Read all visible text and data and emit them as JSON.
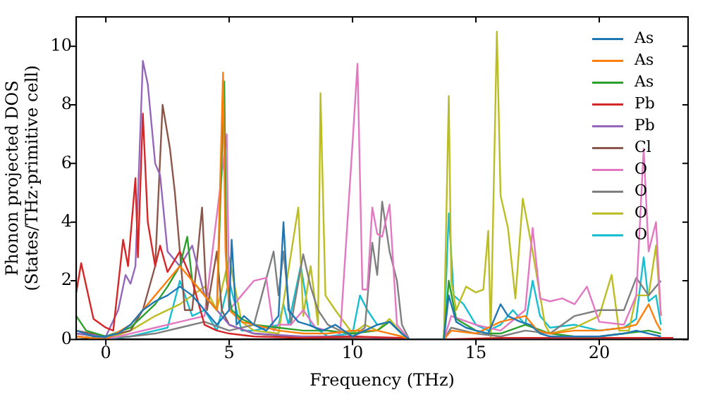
{
  "chart_data": {
    "type": "line",
    "xlabel": "Frequency (THz)",
    "ylabel": "Phonon projected DOS\n(States/THz·primitive cell)",
    "xlim": [
      -1.2,
      23.6
    ],
    "xticks": [
      0,
      5,
      10,
      15,
      20
    ],
    "ylim": [
      0,
      11
    ],
    "yticks": [
      0,
      2,
      4,
      6,
      8,
      10
    ],
    "legend": "top right",
    "grid": false,
    "marker": "none",
    "line_style": "solid",
    "series": [
      {
        "name": "As",
        "color": "#1f77b4",
        "x": [
          -1.2,
          -0.5,
          0,
          0.5,
          1,
          1.5,
          2,
          2.5,
          3,
          3.5,
          4,
          4.5,
          5,
          5.1,
          5.3,
          5.6,
          6,
          6.5,
          7,
          7.2,
          7.4,
          7.8,
          8.2,
          8.8,
          9.3,
          10,
          10.5,
          11,
          11.5,
          12,
          12.3,
          13.7,
          13.9,
          14.2,
          14.6,
          15,
          15.5,
          16,
          16.3,
          16.8,
          17.2,
          17.6,
          18,
          19,
          20,
          21,
          21.5,
          22,
          22.5
        ],
        "values": [
          0.3,
          0.1,
          0.1,
          0.2,
          0.5,
          1.0,
          1.3,
          1.5,
          1.8,
          1.5,
          1.0,
          0.5,
          1.0,
          3.4,
          0.5,
          0.8,
          0.5,
          0.3,
          0.8,
          4.0,
          1.0,
          0.6,
          0.5,
          0.3,
          0.5,
          0.1,
          0.3,
          0.5,
          0.6,
          0.2,
          0,
          0,
          1.5,
          0.6,
          0.4,
          0.3,
          0.2,
          1.2,
          0.8,
          0.6,
          0.5,
          0.2,
          0.1,
          0.1,
          0.1,
          0.2,
          0.3,
          0.2,
          0.1
        ]
      },
      {
        "name": "As",
        "color": "#ff7f0e",
        "x": [
          -1.2,
          0,
          1,
          1.5,
          2,
          2.5,
          3,
          3.5,
          4,
          4.5,
          4.75,
          4.85,
          5,
          5.5,
          6,
          7,
          8,
          9,
          10,
          11,
          12,
          12.3,
          13.7,
          14,
          15,
          16,
          17,
          17.5,
          18,
          19,
          20,
          21,
          21.5,
          22,
          22.3,
          22.5
        ],
        "values": [
          0.1,
          0,
          0.5,
          1,
          1.5,
          2,
          2.5,
          2,
          1.5,
          1,
          9.1,
          3,
          1,
          0.6,
          0.5,
          0.3,
          0.2,
          0.2,
          0.3,
          0.3,
          0.1,
          0,
          0,
          0.3,
          0.2,
          0.6,
          0.8,
          0.3,
          0.2,
          0.3,
          0.3,
          0.4,
          0.5,
          1.2,
          0.6,
          0.3
        ]
      },
      {
        "name": "As",
        "color": "#2ca02c",
        "x": [
          -1.2,
          -0.8,
          0,
          1,
          2,
          2.5,
          3,
          3.3,
          3.5,
          4,
          4.5,
          4.8,
          4.9,
          5.1,
          5.5,
          6,
          7,
          8,
          9,
          10,
          11,
          11.5,
          12,
          12.3,
          13.7,
          13.9,
          14.2,
          15,
          15.5,
          16,
          17,
          18,
          19,
          20,
          21,
          22,
          22.5
        ],
        "values": [
          0.8,
          0.3,
          0.1,
          0.4,
          1.2,
          1.8,
          2.5,
          3.5,
          2,
          1.5,
          1,
          8.8,
          2,
          1,
          0.7,
          0.5,
          0.4,
          0.3,
          0.3,
          0.2,
          0.3,
          0.6,
          0.2,
          0,
          0,
          2.0,
          0.7,
          0.3,
          0.2,
          0.2,
          0.5,
          0.2,
          0.1,
          0.1,
          0.2,
          0.3,
          0.2
        ]
      },
      {
        "name": "Pb",
        "color": "#d62728",
        "x": [
          -1.2,
          -1,
          -0.5,
          0,
          0.3,
          0.7,
          0.9,
          1.2,
          1.3,
          1.5,
          1.7,
          2,
          2.2,
          2.5,
          3,
          3.5,
          4,
          4.5,
          5,
          6,
          8,
          10,
          12,
          12.3,
          13.7,
          16,
          20,
          23
        ],
        "values": [
          1.6,
          2.6,
          0.7,
          0.4,
          0.3,
          3.4,
          2.5,
          5.5,
          2.8,
          7.7,
          4,
          2.5,
          3.2,
          2.3,
          3,
          2,
          0.5,
          0.3,
          0.2,
          0.1,
          0.05,
          0.1,
          0.05,
          0,
          0,
          0.05,
          0.05,
          0.05
        ]
      },
      {
        "name": "Pb",
        "color": "#9467bd",
        "x": [
          -1.2,
          0,
          0.5,
          0.8,
          1,
          1.2,
          1.5,
          1.7,
          2,
          2.2,
          2.5,
          3,
          3.5,
          4,
          4.5,
          5,
          6,
          8,
          10,
          12.3,
          13.7,
          20,
          23
        ],
        "values": [
          0.2,
          0.1,
          1,
          2.2,
          1.9,
          2.5,
          9.5,
          8.7,
          6,
          5.6,
          3,
          2.5,
          3.2,
          1.5,
          1,
          0.5,
          0.2,
          0.1,
          0.1,
          0,
          0,
          0.05,
          0.05
        ]
      },
      {
        "name": "Cl",
        "color": "#8c564b",
        "x": [
          -1.2,
          0,
          1,
          1.5,
          2,
          2.3,
          2.6,
          2.8,
          3,
          3.2,
          3.5,
          3.9,
          4.1,
          4.5,
          4.7,
          5,
          6,
          8,
          12.3,
          13.7,
          23
        ],
        "values": [
          0.3,
          0.1,
          0.3,
          1,
          2.5,
          8,
          6.5,
          5,
          3,
          1,
          1,
          4.5,
          1,
          3,
          1,
          0.5,
          0.2,
          0.05,
          0,
          0,
          0.05
        ]
      },
      {
        "name": "O",
        "color": "#e377c2",
        "x": [
          -1.2,
          0,
          1,
          2,
          3,
          4,
          4.9,
          5,
          5.5,
          6,
          6.5,
          6.8,
          7,
          7.5,
          8,
          8.5,
          9,
          9.5,
          10,
          10.2,
          10.4,
          10.6,
          10.8,
          11,
          11.2,
          11.5,
          11.8,
          12,
          12.3,
          13.7,
          14,
          15,
          16,
          17,
          17.3,
          17.6,
          18,
          18.5,
          19,
          19.5,
          20,
          21,
          21.5,
          21.8,
          22,
          22.3,
          22.5
        ],
        "values": [
          0.1,
          0,
          0.2,
          0.4,
          0.6,
          0.8,
          7,
          1,
          1.5,
          2,
          2.1,
          0.3,
          0.5,
          0.5,
          1.0,
          0.4,
          0.3,
          0.2,
          6.7,
          9.4,
          1.7,
          1.7,
          4.5,
          3.6,
          3.5,
          4.6,
          0.5,
          0.3,
          0,
          0,
          0.8,
          0.5,
          0.3,
          1,
          3.8,
          1.4,
          1.3,
          1.4,
          1.2,
          1.8,
          0.6,
          0.5,
          1.5,
          6.5,
          3,
          4,
          0.8
        ]
      },
      {
        "name": "O",
        "color": "#7f7f7f",
        "x": [
          -1.2,
          0,
          1,
          2,
          3,
          4,
          5,
          6,
          6.8,
          7,
          7.2,
          7.5,
          8,
          8.3,
          8.6,
          9,
          10,
          10.5,
          10.8,
          11,
          11.2,
          11.5,
          11.8,
          12,
          12.3,
          13.7,
          14,
          15,
          16,
          17,
          18,
          19,
          20,
          21,
          21.5,
          22,
          22.5
        ],
        "values": [
          0.2,
          0.05,
          0.1,
          0.2,
          0.4,
          0.6,
          0.3,
          0.5,
          3.0,
          1.5,
          3,
          0.5,
          2.9,
          1.8,
          1,
          0.5,
          0.1,
          0.4,
          3.3,
          2.2,
          4.7,
          3,
          2.0,
          0.5,
          0,
          0,
          0.4,
          0.2,
          0.1,
          0.3,
          0.2,
          0.8,
          1.0,
          1.0,
          2.1,
          1.5,
          2.0
        ]
      },
      {
        "name": "O",
        "color": "#bcbd22",
        "x": [
          -1.2,
          0,
          1,
          2,
          3,
          3.5,
          4,
          4.5,
          5,
          5.5,
          6,
          7,
          7.8,
          8,
          8.3,
          8.6,
          8.7,
          8.9,
          9.3,
          10,
          10.5,
          11,
          11.5,
          12,
          12.3,
          13.7,
          13.9,
          14,
          14.2,
          14.6,
          15,
          15.3,
          15.5,
          15.6,
          15.85,
          16,
          16.3,
          16.6,
          16.9,
          17.3,
          17.8,
          18,
          19,
          20,
          20.5,
          20.8,
          21.2,
          21.5,
          22,
          22.3,
          22.5
        ],
        "values": [
          0.1,
          0,
          0.3,
          0.8,
          1.2,
          1.5,
          1.8,
          1,
          2.8,
          0.6,
          0.3,
          0.2,
          4.5,
          0.8,
          2.5,
          0.5,
          8.4,
          1.5,
          1.0,
          0.2,
          0.5,
          0.3,
          0.7,
          0.2,
          0,
          0,
          8.3,
          2.0,
          1.0,
          1.8,
          1.6,
          1.7,
          3.7,
          0.1,
          10.5,
          4.9,
          3.8,
          1.4,
          4.8,
          3,
          0.5,
          0.2,
          0.4,
          0.8,
          2.2,
          0.3,
          0.3,
          1.5,
          1.5,
          3.2,
          0.8
        ]
      },
      {
        "name": "O",
        "color": "#17becf",
        "x": [
          -1.2,
          0,
          1,
          2,
          2.5,
          3,
          3.5,
          4,
          4.5,
          5,
          5.5,
          6,
          7,
          7.2,
          7.4,
          7.9,
          8.3,
          9,
          10,
          10.3,
          10.6,
          11,
          11.5,
          12,
          12.3,
          13.7,
          13.9,
          14.1,
          14.5,
          15,
          15.5,
          16,
          16.5,
          17,
          17.3,
          17.6,
          18,
          19,
          20,
          21,
          21.5,
          21.8,
          22,
          22.3,
          22.5
        ],
        "values": [
          0.1,
          0,
          0.1,
          0.3,
          0.4,
          2.0,
          0.8,
          1.0,
          0.3,
          2.0,
          0.3,
          0.3,
          0.5,
          1.2,
          0.5,
          2.5,
          0.5,
          0.1,
          0.2,
          1.5,
          1.0,
          0.5,
          0.6,
          0.2,
          0,
          0,
          4.3,
          1.5,
          1.2,
          0.5,
          0.3,
          0.5,
          1.0,
          0.5,
          2.0,
          0.8,
          0.4,
          0.5,
          0.3,
          0.4,
          0.7,
          2.8,
          1.3,
          1.5,
          0.5
        ]
      }
    ]
  }
}
